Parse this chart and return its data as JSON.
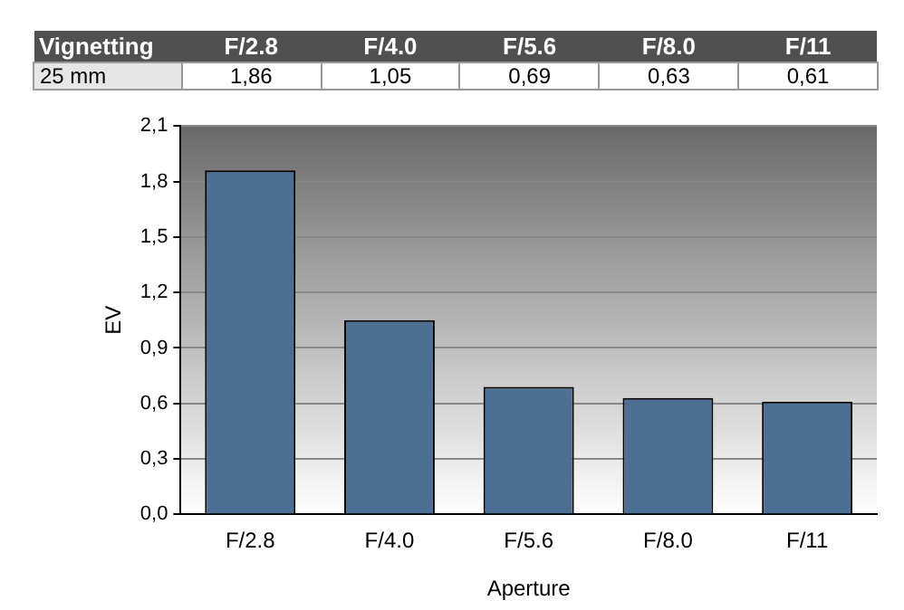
{
  "chart_data": {
    "type": "bar",
    "title": "Vignetting",
    "xlabel": "Aperture",
    "ylabel": "EV",
    "categories": [
      "F/2.8",
      "F/4.0",
      "F/5.6",
      "F/8.0",
      "F/11"
    ],
    "series": [
      {
        "name": "25 mm",
        "color": "#4d6f94",
        "values": [
          1.86,
          1.05,
          0.69,
          0.63,
          0.61
        ],
        "value_labels": [
          "1,86",
          "1,05",
          "0,69",
          "0,63",
          "0,61"
        ]
      }
    ],
    "ylim": [
      0,
      2.1
    ],
    "yticks": [
      {
        "value": 0,
        "label": "0,0"
      },
      {
        "value": 0.3,
        "label": "0,3"
      },
      {
        "value": 0.6,
        "label": "0,6"
      },
      {
        "value": 0.9,
        "label": "0,9"
      },
      {
        "value": 1.2,
        "label": "1,2"
      },
      {
        "value": 1.5,
        "label": "1,5"
      },
      {
        "value": 1.8,
        "label": "1,8"
      },
      {
        "value": 2.1,
        "label": "2,1"
      }
    ],
    "grid": "y",
    "legend": false
  }
}
